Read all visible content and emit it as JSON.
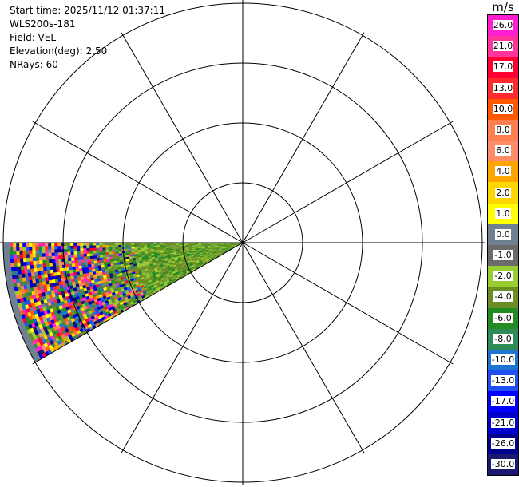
{
  "info": {
    "start_time": "Start time: 2025/11/12 01:37:11",
    "instrument": "WLS200s-181",
    "field": "Field: VEL",
    "elevation": "Elevation(deg): 2.50",
    "nrays": "NRays: 60"
  },
  "colorbar": {
    "unit": "m/s",
    "labels": [
      "26.0",
      "21.0",
      "17.0",
      "13.0",
      "10.0",
      "8.0",
      "6.0",
      "4.0",
      "2.0",
      "1.0",
      "0.0",
      "-1.0",
      "-2.0",
      "-4.0",
      "-6.0",
      "-8.0",
      "-10.0",
      "-13.0",
      "-17.0",
      "-21.0",
      "-26.0",
      "-30.0"
    ],
    "colors": [
      "#ff1fd0",
      "#ff3399",
      "#ff0033",
      "#ff2a2a",
      "#ff5a00",
      "#ff7f50",
      "#ff8c69",
      "#ffa500",
      "#ffd700",
      "#ffff00",
      "#708090",
      "#6b6b6b",
      "#9acd32",
      "#6b8e23",
      "#228b22",
      "#2e8b57",
      "#1e74d0",
      "#1e4ff0",
      "#0000ff",
      "#0000cd",
      "#00008b",
      "#191970"
    ]
  }
}
